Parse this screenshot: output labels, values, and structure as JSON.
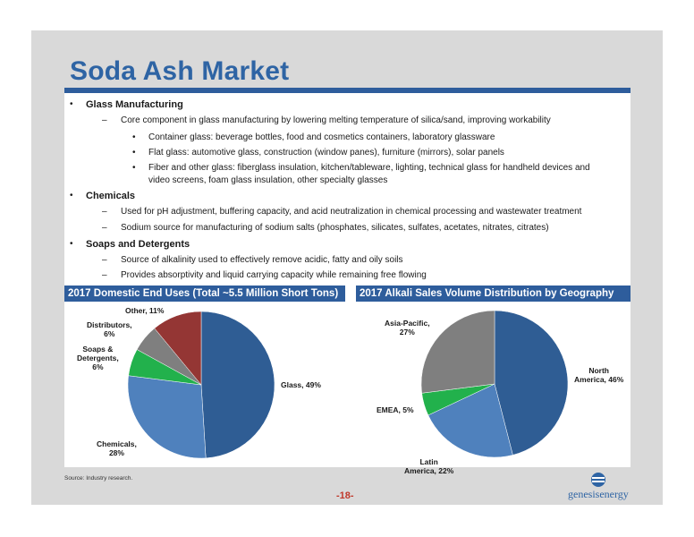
{
  "title": "Soda Ash Market",
  "sections": [
    {
      "label": "Glass Manufacturing",
      "sub": "Core component in glass manufacturing by lowering melting temperature of silica/sand, improving workability",
      "items": [
        "Container glass: beverage bottles, food and cosmetics containers, laboratory glassware",
        "Flat glass: automotive glass, construction (window panes), furniture (mirrors), solar panels",
        "Fiber and other glass: fiberglass insulation, kitchen/tableware, lighting, technical glass for handheld devices and",
        "video screens, foam glass insulation, other specialty glasses"
      ]
    },
    {
      "label": "Chemicals",
      "subs": [
        "Used for pH adjustment, buffering capacity, and acid neutralization in chemical processing and wastewater treatment",
        "Sodium source for manufacturing of sodium salts (phosphates, silicates, sulfates, acetates, nitrates, citrates)"
      ]
    },
    {
      "label": "Soaps and Detergents",
      "subs": [
        "Source of alkalinity used to effectively remove acidic, fatty and oily soils",
        "Provides absorptivity and liquid carrying capacity while remaining free flowing"
      ]
    }
  ],
  "chart_headers": [
    "2017 Domestic End Uses (Total ~5.5 Million Short Tons)",
    "2017 Alkali Sales Volume Distribution by Geography"
  ],
  "chart_data": [
    {
      "type": "pie",
      "title": "2017 Domestic End Uses (Total ~5.5 Million Short Tons)",
      "slices": [
        {
          "label": "Glass, 49%",
          "value": 49,
          "color": "#2f5d94"
        },
        {
          "label": "Chemicals, 28%",
          "value": 28,
          "color": "#4f81bd"
        },
        {
          "label": "Soaps & Detergents, 6%",
          "value": 6,
          "color": "#22b14c"
        },
        {
          "label": "Distributors, 6%",
          "value": 6,
          "color": "#7f7f7f"
        },
        {
          "label": "Other, 11%",
          "value": 11,
          "color": "#943634"
        }
      ]
    },
    {
      "type": "pie",
      "title": "2017 Alkali Sales Volume Distribution by Geography",
      "slices": [
        {
          "label": "North America, 46%",
          "value": 46,
          "color": "#2f5d94"
        },
        {
          "label": "Latin America, 22%",
          "value": 22,
          "color": "#4f81bd"
        },
        {
          "label": "EMEA, 5%",
          "value": 5,
          "color": "#22b14c"
        },
        {
          "label": "Asia-Pacific, 27%",
          "value": 27,
          "color": "#7f7f7f"
        }
      ]
    }
  ],
  "pie1_labels": {
    "other": [
      "Other, 11%"
    ],
    "distributors": [
      "Distributors,",
      "6%"
    ],
    "soaps": [
      "Soaps &",
      "Detergents,",
      "6%"
    ],
    "glass": [
      "Glass, 49%"
    ],
    "chemicals": [
      "Chemicals,",
      "28%"
    ]
  },
  "pie2_labels": {
    "asia": [
      "Asia-Pacific,",
      "27%"
    ],
    "north": [
      "North",
      "America, 46%"
    ],
    "emea": [
      "EMEA, 5%"
    ],
    "latin": [
      "Latin",
      "America, 22%"
    ]
  },
  "source": "Source: Industry research.",
  "page_number": "-18-",
  "logo": {
    "text": "genesisenergy",
    "color": "#2e64a4"
  }
}
